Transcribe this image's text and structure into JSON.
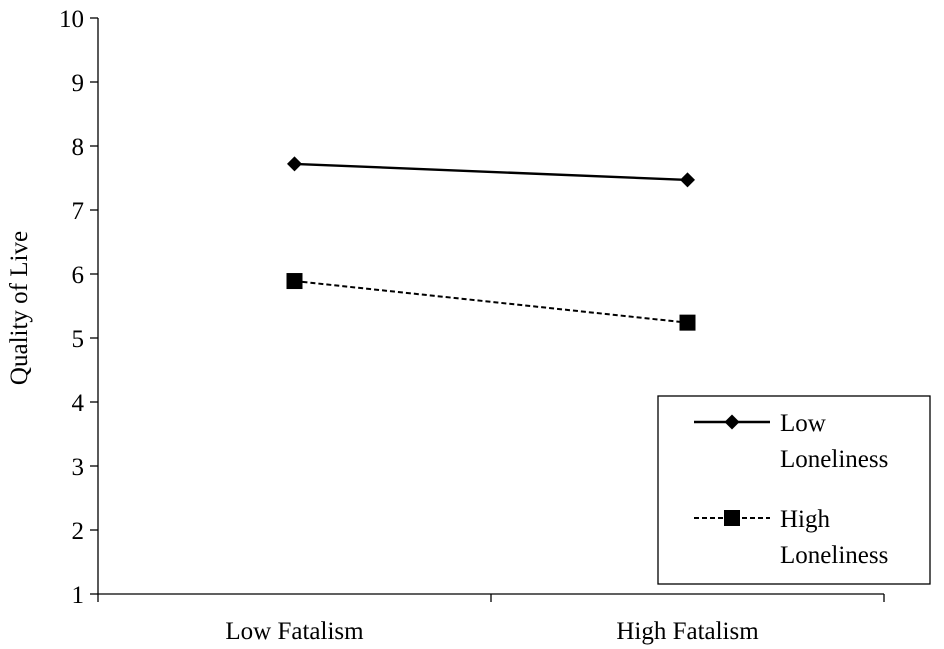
{
  "chart_data": {
    "type": "line",
    "categories": [
      "Low Fatalism",
      "High Fatalism"
    ],
    "series": [
      {
        "name_lines": [
          "Low",
          "Loneliness"
        ],
        "values": [
          7.72,
          7.47
        ],
        "line_style": "solid",
        "marker": "diamond",
        "color": "#000000"
      },
      {
        "name_lines": [
          "High",
          "Loneliness"
        ],
        "values": [
          5.89,
          5.24
        ],
        "line_style": "dashed",
        "marker": "square",
        "color": "#000000"
      }
    ],
    "ylabel": "Quality of Live",
    "xlabel": "",
    "title": "",
    "ylim": [
      1,
      10
    ],
    "yticks": [
      1,
      2,
      3,
      4,
      5,
      6,
      7,
      8,
      9,
      10
    ],
    "grid": false,
    "legend_position": "bottom-right"
  }
}
